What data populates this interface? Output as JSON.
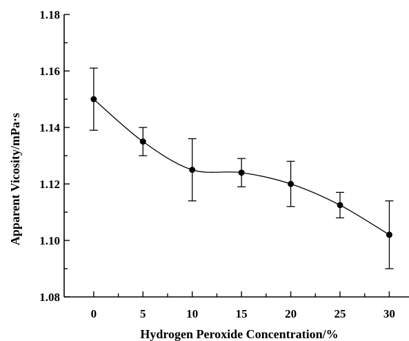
{
  "chart_data": {
    "type": "scatter",
    "xlabel": "Hydrogen Peroxide Concentration/%",
    "ylabel": "Apparent Vicosity/mPa·s",
    "xlim": [
      -3,
      32
    ],
    "ylim": [
      1.08,
      1.18
    ],
    "x_ticks": [
      0,
      5,
      10,
      15,
      20,
      25,
      30
    ],
    "y_ticks": [
      1.08,
      1.1,
      1.12,
      1.14,
      1.16,
      1.18
    ],
    "y_tick_labels": [
      "1.08",
      "1.10",
      "1.12",
      "1.14",
      "1.16",
      "1.18"
    ],
    "grid": false,
    "legend": "none",
    "smooth_fit_line": true,
    "points": [
      {
        "x": 0,
        "y": 1.15,
        "err_low": 1.139,
        "err_high": 1.161
      },
      {
        "x": 5,
        "y": 1.135,
        "err_low": 1.13,
        "err_high": 1.14
      },
      {
        "x": 10,
        "y": 1.125,
        "err_low": 1.114,
        "err_high": 1.136
      },
      {
        "x": 15,
        "y": 1.124,
        "err_low": 1.119,
        "err_high": 1.129
      },
      {
        "x": 20,
        "y": 1.12,
        "err_low": 1.112,
        "err_high": 1.128
      },
      {
        "x": 25,
        "y": 1.1125,
        "err_low": 1.108,
        "err_high": 1.117
      },
      {
        "x": 30,
        "y": 1.102,
        "err_low": 1.09,
        "err_high": 1.114
      }
    ],
    "colors": {
      "marker": "#000000",
      "line": "#000000",
      "axis": "#000000"
    }
  }
}
